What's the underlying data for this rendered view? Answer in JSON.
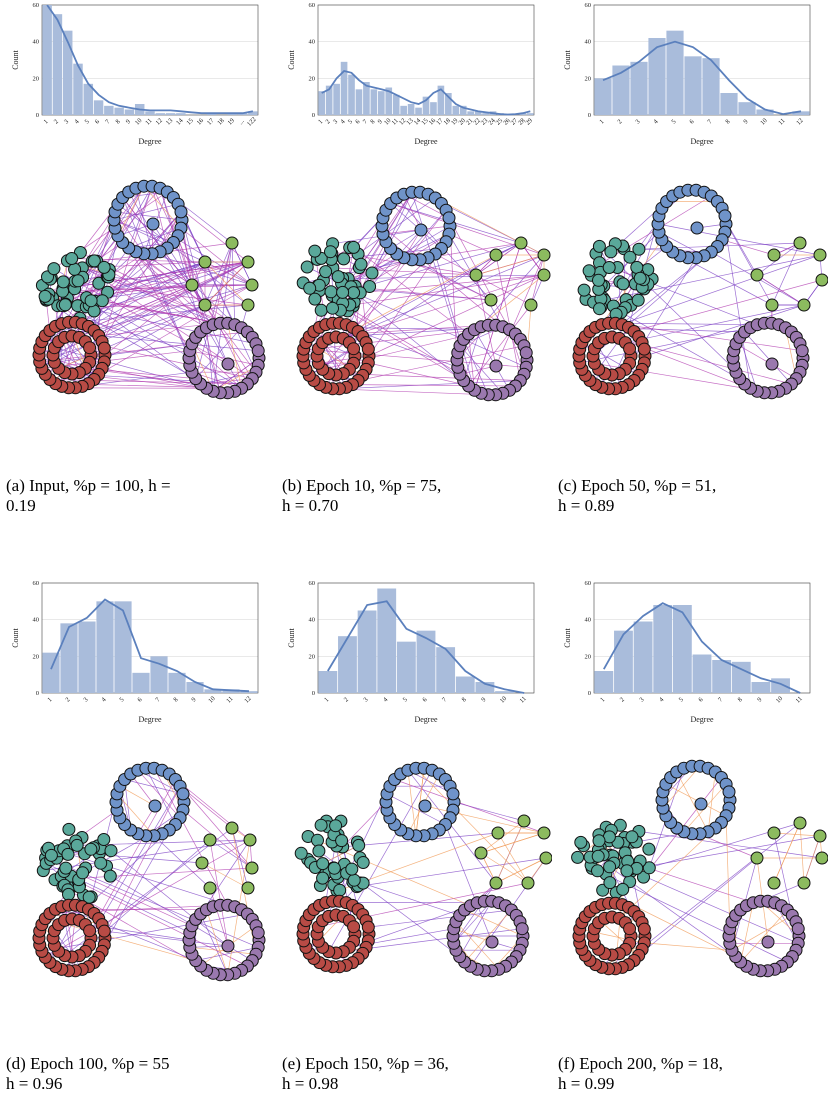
{
  "style": {
    "bar_color": "#a9bcdb",
    "line_color": "#5b80bd",
    "grid_color": "#dcdcdc",
    "node_colors": {
      "blue": "#6f93c9",
      "teal": "#5aa89a",
      "red": "#b84b45",
      "purple": "#9a78ae",
      "green": "#8cbb5f"
    },
    "edge_colors": {
      "inter": "#7b3fc4",
      "magenta": "#b23cb0",
      "orange": "#f09a55"
    }
  },
  "panels": [
    {
      "caption": "(a) Input, %p = 100, h =\n0.19",
      "edge_mix": {
        "inter": 140,
        "magenta": 110,
        "orange": 20
      }
    },
    {
      "caption": "(b) Epoch 10, %p = 75,\nh = 0.70",
      "edge_mix": {
        "inter": 70,
        "magenta": 90,
        "orange": 14
      }
    },
    {
      "caption": "(c) Epoch 50, %p = 51,\nh = 0.89",
      "edge_mix": {
        "inter": 70,
        "magenta": 20,
        "orange": 8
      }
    },
    {
      "caption": "(d) Epoch 100, %p = 55\nh = 0.96",
      "edge_mix": {
        "inter": 60,
        "magenta": 25,
        "orange": 20
      }
    },
    {
      "caption": "(e) Epoch 150, %p = 36,\nh = 0.98",
      "edge_mix": {
        "inter": 40,
        "magenta": 6,
        "orange": 45
      }
    },
    {
      "caption": "(f) Epoch 200, %p = 18,\nh = 0.99",
      "edge_mix": {
        "inter": 30,
        "magenta": 4,
        "orange": 50
      }
    }
  ],
  "chart_data": [
    {
      "type": "bar",
      "xlabel": "Degree",
      "ylabel": "Count",
      "ylim": [
        0,
        60
      ],
      "yticks": [
        0,
        20,
        40,
        60
      ],
      "grid": true,
      "categories": [
        "1",
        "2",
        "3",
        "4",
        "5",
        "6",
        "7",
        "8",
        "9",
        "10",
        "11",
        "12",
        "13",
        "14",
        "15",
        "16",
        "17",
        "18",
        "19",
        "...",
        "122"
      ],
      "values": [
        60,
        55,
        46,
        28,
        17,
        8,
        5,
        4,
        3,
        6,
        2,
        1,
        1,
        1,
        0,
        0,
        1,
        0,
        1,
        1,
        2
      ],
      "kde": [
        60,
        52,
        40,
        27,
        17,
        11,
        7,
        5,
        4,
        3,
        2.5,
        2.5,
        2.5,
        2,
        1.5,
        1,
        1,
        1,
        1,
        1,
        2
      ]
    },
    {
      "type": "bar",
      "xlabel": "Degree",
      "ylabel": "Count",
      "ylim": [
        0,
        60
      ],
      "yticks": [
        0,
        20,
        40,
        60
      ],
      "grid": true,
      "categories": [
        "1",
        "2",
        "3",
        "4",
        "5",
        "6",
        "7",
        "8",
        "9",
        "10",
        "11",
        "12",
        "13",
        "14",
        "15",
        "16",
        "17",
        "18",
        "19",
        "20",
        "21",
        "22",
        "23",
        "24",
        "25",
        "26",
        "27",
        "28",
        "29"
      ],
      "values": [
        13,
        16,
        17,
        29,
        22,
        14,
        18,
        14,
        13,
        15,
        11,
        5,
        6,
        4,
        10,
        7,
        16,
        12,
        5,
        5,
        2,
        2,
        1,
        2,
        1,
        0,
        0,
        1,
        1
      ],
      "kde": [
        12,
        14,
        20,
        24,
        23,
        19,
        16,
        15,
        14,
        13,
        11,
        9,
        7,
        6,
        8,
        12,
        14,
        10,
        6,
        4,
        3,
        2,
        1.5,
        1,
        0.5,
        0.3,
        0.5,
        1,
        2
      ]
    },
    {
      "type": "bar",
      "xlabel": "Degree",
      "ylabel": "Count",
      "ylim": [
        0,
        60
      ],
      "yticks": [
        0,
        20,
        40,
        60
      ],
      "grid": true,
      "categories": [
        "1",
        "2",
        "3",
        "4",
        "5",
        "6",
        "7",
        "8",
        "9",
        "10",
        "11",
        "12"
      ],
      "values": [
        20,
        27,
        29,
        42,
        46,
        32,
        31,
        12,
        7,
        3,
        0,
        2
      ],
      "kde": [
        19,
        23,
        29,
        37,
        40,
        37,
        30,
        19,
        9,
        3,
        0.5,
        2
      ]
    },
    {
      "type": "bar",
      "xlabel": "Degree",
      "ylabel": "Count",
      "ylim": [
        0,
        60
      ],
      "yticks": [
        0,
        20,
        40,
        60
      ],
      "grid": true,
      "categories": [
        "1",
        "2",
        "3",
        "4",
        "5",
        "6",
        "7",
        "8",
        "9",
        "10",
        "11",
        "12"
      ],
      "values": [
        22,
        38,
        39,
        50,
        50,
        11,
        20,
        11,
        6,
        2,
        2,
        1
      ],
      "kde": [
        13,
        36,
        41,
        51,
        45,
        19,
        16,
        12,
        6,
        2,
        1.5,
        1
      ]
    },
    {
      "type": "bar",
      "xlabel": "Degree",
      "ylabel": "Count",
      "ylim": [
        0,
        60
      ],
      "yticks": [
        0,
        20,
        40,
        60
      ],
      "grid": true,
      "categories": [
        "1",
        "2",
        "3",
        "4",
        "5",
        "6",
        "7",
        "8",
        "9",
        "10",
        "11"
      ],
      "values": [
        12,
        31,
        45,
        57,
        28,
        34,
        25,
        9,
        6,
        1,
        0
      ],
      "kde": [
        12,
        30,
        48,
        50,
        35,
        30,
        24,
        12,
        5,
        2,
        0
      ]
    },
    {
      "type": "bar",
      "xlabel": "Degree",
      "ylabel": "Count",
      "ylim": [
        0,
        60
      ],
      "yticks": [
        0,
        20,
        40,
        60
      ],
      "grid": true,
      "categories": [
        "1",
        "2",
        "3",
        "4",
        "5",
        "6",
        "7",
        "8",
        "9",
        "10",
        "11"
      ],
      "values": [
        12,
        34,
        39,
        48,
        48,
        21,
        18,
        17,
        6,
        8,
        0
      ],
      "kde": [
        13,
        32,
        42,
        49,
        44,
        28,
        18,
        13,
        8,
        5,
        0
      ]
    }
  ]
}
